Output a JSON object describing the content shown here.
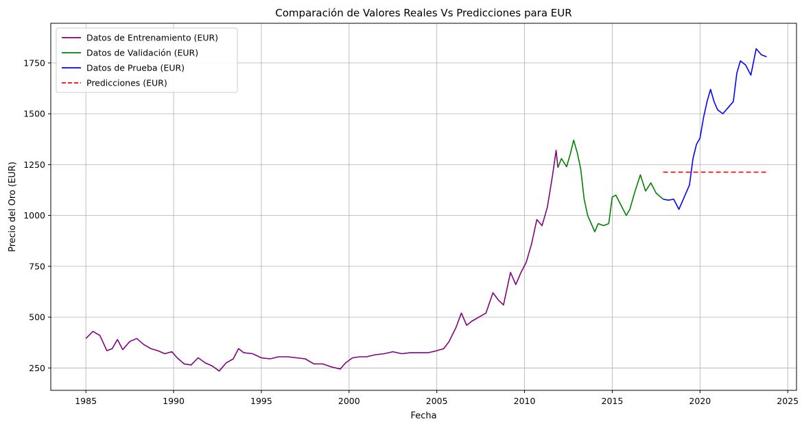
{
  "chart_data": {
    "type": "line",
    "title": "Comparación de Valores Reales Vs Predicciones para EUR",
    "xlabel": "Fecha",
    "ylabel": "Precio del Oro (EUR)",
    "xlim": [
      1983.0,
      2025.5
    ],
    "ylim": [
      140,
      1945
    ],
    "xticks": [
      1985,
      1990,
      1995,
      2000,
      2005,
      2010,
      2015,
      2020,
      2025
    ],
    "yticks": [
      250,
      500,
      750,
      1000,
      1250,
      1500,
      1750
    ],
    "grid": true,
    "legend_position": "top-left",
    "series": [
      {
        "name": "Datos de Entrenamiento (EUR)",
        "color": "#800080",
        "style": "solid",
        "points": [
          [
            1985.0,
            395
          ],
          [
            1985.4,
            430
          ],
          [
            1985.8,
            410
          ],
          [
            1986.2,
            335
          ],
          [
            1986.5,
            345
          ],
          [
            1986.8,
            390
          ],
          [
            1987.1,
            340
          ],
          [
            1987.5,
            380
          ],
          [
            1987.9,
            395
          ],
          [
            1988.3,
            365
          ],
          [
            1988.7,
            345
          ],
          [
            1989.1,
            335
          ],
          [
            1989.5,
            320
          ],
          [
            1989.9,
            330
          ],
          [
            1990.2,
            300
          ],
          [
            1990.6,
            270
          ],
          [
            1991.0,
            265
          ],
          [
            1991.4,
            300
          ],
          [
            1991.8,
            275
          ],
          [
            1992.2,
            260
          ],
          [
            1992.6,
            235
          ],
          [
            1993.0,
            275
          ],
          [
            1993.4,
            295
          ],
          [
            1993.7,
            345
          ],
          [
            1994.0,
            325
          ],
          [
            1994.5,
            320
          ],
          [
            1995.0,
            300
          ],
          [
            1995.5,
            295
          ],
          [
            1996.0,
            305
          ],
          [
            1996.5,
            305
          ],
          [
            1997.0,
            300
          ],
          [
            1997.5,
            295
          ],
          [
            1998.0,
            270
          ],
          [
            1998.5,
            270
          ],
          [
            1999.0,
            255
          ],
          [
            1999.5,
            245
          ],
          [
            1999.8,
            275
          ],
          [
            2000.2,
            300
          ],
          [
            2000.6,
            305
          ],
          [
            2001.0,
            305
          ],
          [
            2001.5,
            315
          ],
          [
            2002.0,
            320
          ],
          [
            2002.5,
            330
          ],
          [
            2003.0,
            320
          ],
          [
            2003.5,
            325
          ],
          [
            2004.0,
            325
          ],
          [
            2004.5,
            325
          ],
          [
            2005.0,
            335
          ],
          [
            2005.4,
            345
          ],
          [
            2005.7,
            380
          ],
          [
            2006.1,
            450
          ],
          [
            2006.4,
            520
          ],
          [
            2006.7,
            460
          ],
          [
            2007.0,
            480
          ],
          [
            2007.4,
            500
          ],
          [
            2007.8,
            520
          ],
          [
            2008.2,
            620
          ],
          [
            2008.5,
            585
          ],
          [
            2008.8,
            560
          ],
          [
            2009.2,
            720
          ],
          [
            2009.5,
            660
          ],
          [
            2009.8,
            720
          ],
          [
            2010.1,
            770
          ],
          [
            2010.4,
            860
          ],
          [
            2010.7,
            980
          ],
          [
            2011.0,
            950
          ],
          [
            2011.3,
            1040
          ],
          [
            2011.6,
            1200
          ],
          [
            2011.8,
            1320
          ],
          [
            2011.9,
            1235
          ]
        ]
      },
      {
        "name": "Datos de Validación (EUR)",
        "color": "#008000",
        "style": "solid",
        "points": [
          [
            2011.9,
            1235
          ],
          [
            2012.1,
            1280
          ],
          [
            2012.4,
            1240
          ],
          [
            2012.6,
            1300
          ],
          [
            2012.8,
            1370
          ],
          [
            2013.0,
            1310
          ],
          [
            2013.2,
            1230
          ],
          [
            2013.4,
            1080
          ],
          [
            2013.6,
            1000
          ],
          [
            2013.8,
            960
          ],
          [
            2014.0,
            920
          ],
          [
            2014.2,
            960
          ],
          [
            2014.5,
            950
          ],
          [
            2014.8,
            960
          ],
          [
            2015.0,
            1090
          ],
          [
            2015.2,
            1100
          ],
          [
            2015.5,
            1050
          ],
          [
            2015.8,
            1000
          ],
          [
            2016.0,
            1030
          ],
          [
            2016.3,
            1120
          ],
          [
            2016.6,
            1200
          ],
          [
            2016.9,
            1120
          ],
          [
            2017.2,
            1160
          ],
          [
            2017.5,
            1110
          ],
          [
            2017.9,
            1080
          ]
        ]
      },
      {
        "name": "Datos de Prueba (EUR)",
        "color": "#0000ff",
        "style": "solid",
        "points": [
          [
            2017.9,
            1080
          ],
          [
            2018.2,
            1075
          ],
          [
            2018.5,
            1080
          ],
          [
            2018.8,
            1030
          ],
          [
            2019.1,
            1090
          ],
          [
            2019.4,
            1150
          ],
          [
            2019.6,
            1280
          ],
          [
            2019.8,
            1350
          ],
          [
            2020.0,
            1380
          ],
          [
            2020.2,
            1480
          ],
          [
            2020.4,
            1560
          ],
          [
            2020.6,
            1620
          ],
          [
            2020.8,
            1560
          ],
          [
            2021.0,
            1520
          ],
          [
            2021.3,
            1500
          ],
          [
            2021.6,
            1530
          ],
          [
            2021.9,
            1560
          ],
          [
            2022.1,
            1700
          ],
          [
            2022.3,
            1760
          ],
          [
            2022.6,
            1740
          ],
          [
            2022.9,
            1690
          ],
          [
            2023.2,
            1820
          ],
          [
            2023.5,
            1790
          ],
          [
            2023.8,
            1780
          ]
        ]
      },
      {
        "name": "Predicciones (EUR)",
        "color": "#ff0000",
        "style": "dashed",
        "points": [
          [
            2017.9,
            1213
          ],
          [
            2023.8,
            1213
          ]
        ]
      }
    ]
  }
}
